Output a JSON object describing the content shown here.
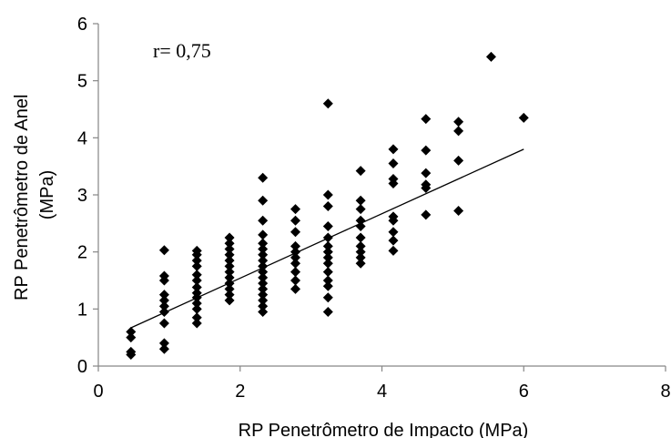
{
  "chart_data": {
    "type": "scatter",
    "xlabel": "RP Penetrômetro de Impacto (MPa)",
    "ylabel": "RP Penetrômetro de Anel\n(MPa)",
    "xlim": [
      0,
      8
    ],
    "ylim": [
      0,
      6
    ],
    "xticks": [
      "0",
      "2",
      "4",
      "6",
      "8"
    ],
    "yticks": [
      "0",
      "1",
      "2",
      "3",
      "4",
      "5",
      "6"
    ],
    "grid": false,
    "annotation": "r= 0,75",
    "marker_color": "#000000",
    "marker": "diamond",
    "trendline": {
      "x": [
        0.46,
        6.0
      ],
      "y": [
        0.67,
        3.8
      ]
    },
    "series": [
      {
        "points": [
          [
            0.46,
            0.2
          ],
          [
            0.46,
            0.25
          ],
          [
            0.46,
            0.5
          ],
          [
            0.46,
            0.6
          ],
          [
            0.93,
            0.3
          ],
          [
            0.93,
            0.4
          ],
          [
            0.93,
            0.75
          ],
          [
            0.93,
            0.95
          ],
          [
            0.93,
            1.05
          ],
          [
            0.93,
            1.15
          ],
          [
            0.93,
            1.25
          ],
          [
            0.93,
            1.5
          ],
          [
            0.93,
            1.58
          ],
          [
            0.93,
            2.03
          ],
          [
            1.39,
            0.75
          ],
          [
            1.39,
            0.85
          ],
          [
            1.39,
            1.0
          ],
          [
            1.39,
            1.1
          ],
          [
            1.39,
            1.2
          ],
          [
            1.39,
            1.28
          ],
          [
            1.39,
            1.38
          ],
          [
            1.39,
            1.5
          ],
          [
            1.39,
            1.6
          ],
          [
            1.39,
            1.75
          ],
          [
            1.39,
            1.85
          ],
          [
            1.39,
            1.95
          ],
          [
            1.39,
            2.02
          ],
          [
            1.85,
            1.15
          ],
          [
            1.85,
            1.25
          ],
          [
            1.85,
            1.35
          ],
          [
            1.85,
            1.45
          ],
          [
            1.85,
            1.55
          ],
          [
            1.85,
            1.65
          ],
          [
            1.85,
            1.75
          ],
          [
            1.85,
            1.85
          ],
          [
            1.85,
            1.95
          ],
          [
            1.85,
            2.05
          ],
          [
            1.85,
            2.15
          ],
          [
            1.85,
            2.25
          ],
          [
            2.32,
            0.95
          ],
          [
            2.32,
            1.05
          ],
          [
            2.32,
            1.15
          ],
          [
            2.32,
            1.25
          ],
          [
            2.32,
            1.35
          ],
          [
            2.32,
            1.45
          ],
          [
            2.32,
            1.55
          ],
          [
            2.32,
            1.65
          ],
          [
            2.32,
            1.75
          ],
          [
            2.32,
            1.85
          ],
          [
            2.32,
            1.95
          ],
          [
            2.32,
            2.05
          ],
          [
            2.32,
            2.15
          ],
          [
            2.32,
            2.3
          ],
          [
            2.32,
            2.55
          ],
          [
            2.32,
            2.9
          ],
          [
            2.32,
            3.3
          ],
          [
            2.78,
            1.35
          ],
          [
            2.78,
            1.5
          ],
          [
            2.78,
            1.65
          ],
          [
            2.78,
            1.8
          ],
          [
            2.78,
            1.9
          ],
          [
            2.78,
            2.0
          ],
          [
            2.78,
            2.1
          ],
          [
            2.78,
            2.35
          ],
          [
            2.78,
            2.55
          ],
          [
            2.78,
            2.75
          ],
          [
            3.24,
            0.95
          ],
          [
            3.24,
            1.2
          ],
          [
            3.24,
            1.4
          ],
          [
            3.24,
            1.5
          ],
          [
            3.24,
            1.65
          ],
          [
            3.24,
            1.8
          ],
          [
            3.24,
            1.9
          ],
          [
            3.24,
            2.0
          ],
          [
            3.24,
            2.1
          ],
          [
            3.24,
            2.25
          ],
          [
            3.24,
            2.45
          ],
          [
            3.24,
            2.8
          ],
          [
            3.24,
            3.0
          ],
          [
            3.24,
            4.6
          ],
          [
            3.7,
            1.8
          ],
          [
            3.7,
            1.9
          ],
          [
            3.7,
            2.0
          ],
          [
            3.7,
            2.1
          ],
          [
            3.7,
            2.25
          ],
          [
            3.7,
            2.45
          ],
          [
            3.7,
            2.55
          ],
          [
            3.7,
            2.75
          ],
          [
            3.7,
            2.9
          ],
          [
            3.7,
            3.42
          ],
          [
            4.16,
            2.02
          ],
          [
            4.16,
            2.2
          ],
          [
            4.16,
            2.35
          ],
          [
            4.16,
            2.55
          ],
          [
            4.16,
            2.62
          ],
          [
            4.16,
            3.2
          ],
          [
            4.16,
            3.28
          ],
          [
            4.16,
            3.55
          ],
          [
            4.16,
            3.8
          ],
          [
            4.62,
            2.65
          ],
          [
            4.62,
            3.12
          ],
          [
            4.62,
            3.18
          ],
          [
            4.62,
            3.38
          ],
          [
            4.62,
            3.78
          ],
          [
            4.62,
            4.33
          ],
          [
            5.08,
            2.72
          ],
          [
            5.08,
            3.6
          ],
          [
            5.08,
            4.12
          ],
          [
            5.08,
            4.28
          ],
          [
            5.54,
            5.42
          ],
          [
            6.0,
            4.35
          ]
        ]
      }
    ]
  }
}
